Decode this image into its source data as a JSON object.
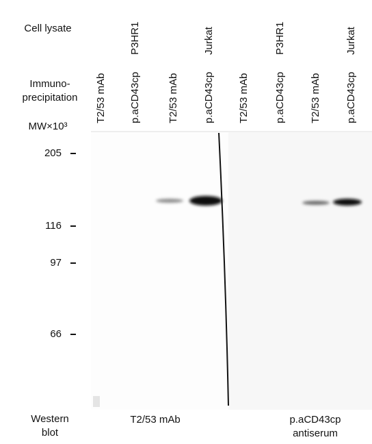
{
  "row_labels": {
    "cell_lysate": "Cell lysate",
    "immunoprecipitation": [
      "Immuno-",
      "precipitation"
    ],
    "mw": "MW×10³",
    "western_blot": [
      "Western",
      "blot"
    ]
  },
  "cell_lysates": [
    "P3HR1",
    "Jurkat",
    "P3HR1",
    "Jurkat"
  ],
  "lanes": [
    "T2/53 mAb",
    "p.aCD43cp",
    "T2/53 mAb",
    "p.aCD43cp",
    "T2/53 mAb",
    "p.aCD43cp",
    "T2/53 mAb",
    "p.aCD43cp"
  ],
  "mw_markers": [
    205,
    116,
    97,
    66
  ],
  "blots": [
    {
      "label": [
        "T2/53 mAb"
      ]
    },
    {
      "label": [
        "p.aCD43cp",
        "antiserum"
      ]
    }
  ]
}
